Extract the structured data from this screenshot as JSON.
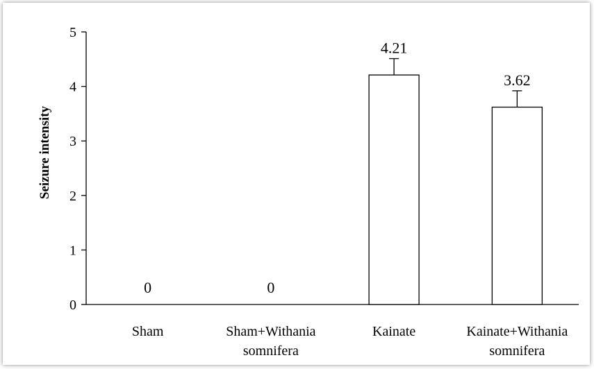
{
  "chart_data": {
    "type": "bar",
    "title": "",
    "xlabel": "",
    "ylabel": "Seizure intensity",
    "ylim": [
      0,
      5
    ],
    "yticks": [
      "0",
      "1",
      "2",
      "3",
      "4",
      "5"
    ],
    "categories": [
      [
        "Sham"
      ],
      [
        "Sham+Withania",
        "somnifera"
      ],
      [
        "Kainate"
      ],
      [
        "Kainate+Withania",
        "somnifera"
      ]
    ],
    "values": [
      0,
      0,
      4.21,
      3.62
    ],
    "errors": [
      0,
      0,
      0.3,
      0.3
    ],
    "data_labels": [
      "0",
      "0",
      "4.21",
      "3.62"
    ],
    "grid": false,
    "legend": "none",
    "colors": {
      "bar_fill": "#ffffff",
      "bar_stroke": "#000000",
      "axis": "#000000"
    }
  }
}
